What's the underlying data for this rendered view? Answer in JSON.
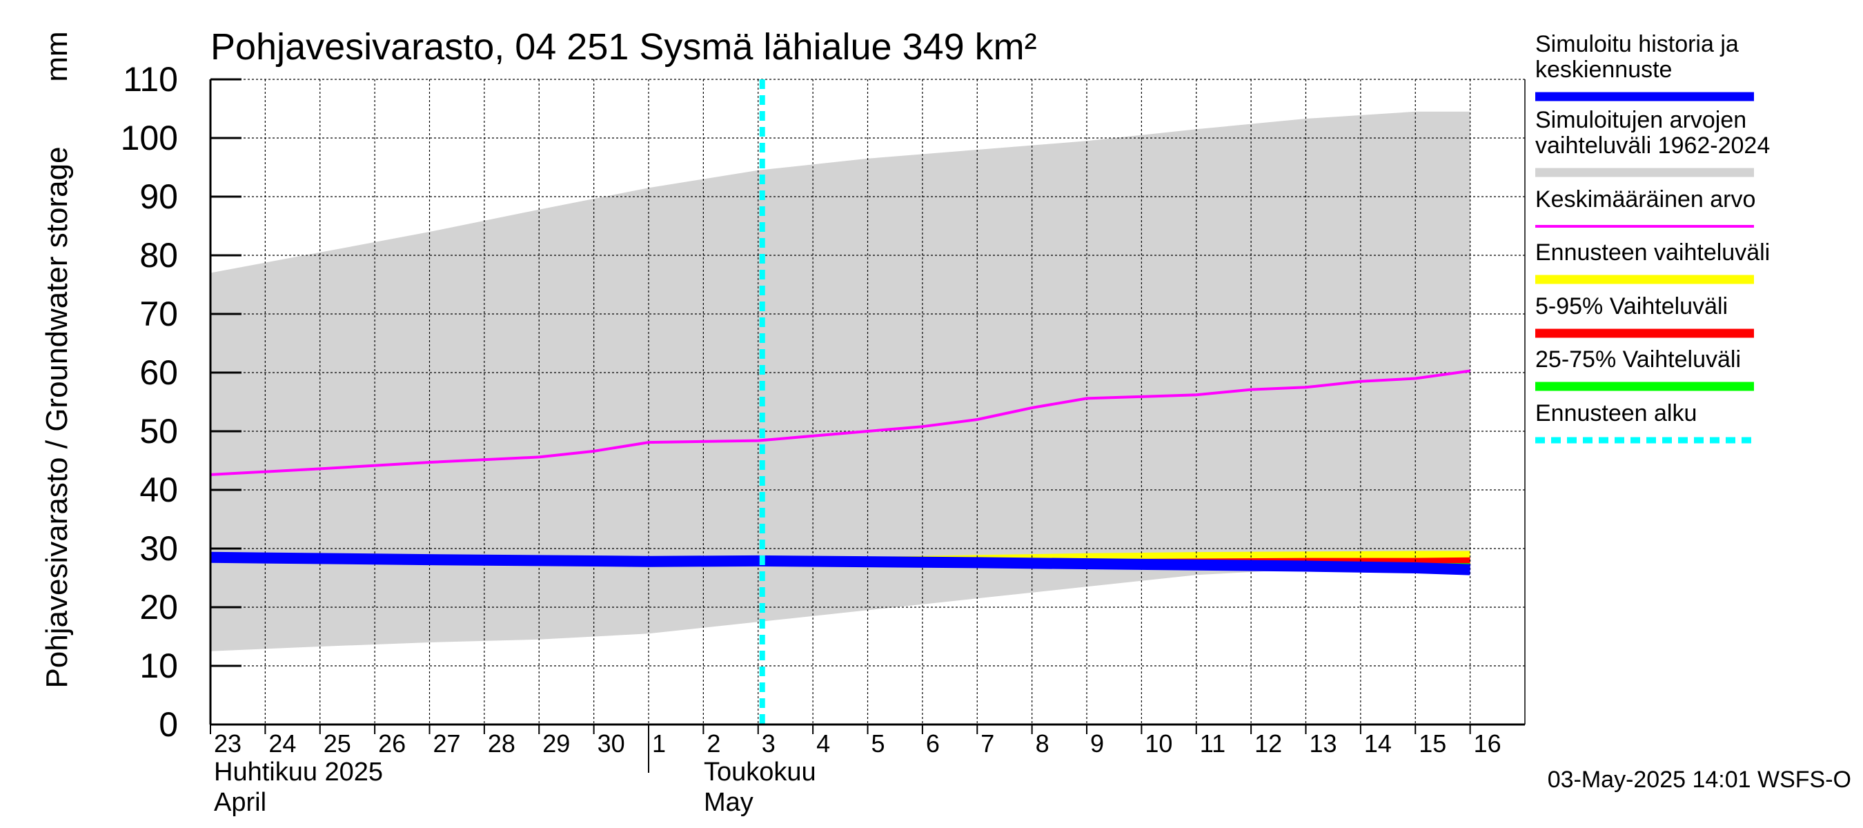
{
  "chart_data": {
    "type": "area",
    "title": "Pohjavesivarasto, 04 251 Sysmä lähialue 349 km²",
    "ylabel": "Pohjavesivarasto / Groundwater storage",
    "yunit": "mm",
    "ylim": [
      0,
      110
    ],
    "yticks": [
      0,
      10,
      20,
      30,
      40,
      50,
      60,
      70,
      80,
      90,
      100,
      110
    ],
    "grid": true,
    "x_start": "2025-04-23",
    "x_end": "2025-05-16",
    "x_tick_labels": [
      "23",
      "24",
      "25",
      "26",
      "27",
      "28",
      "29",
      "30",
      "1",
      "2",
      "3",
      "4",
      "5",
      "6",
      "7",
      "8",
      "9",
      "10",
      "11",
      "12",
      "13",
      "14",
      "15",
      "16"
    ],
    "month_labels": [
      {
        "fi": "Huhtikuu  2025",
        "en": "April"
      },
      {
        "fi": "Toukokuu",
        "en": "May"
      }
    ],
    "forecast_start": "2025-05-03",
    "footer": "03-May-2025 14:01 WSFS-O",
    "legend_position": "right",
    "legend": [
      {
        "label": "Simuloitu historia ja\nkeskiennuste",
        "color": "#0000ff",
        "style": "thick"
      },
      {
        "label": "Simuloitujen arvojen\nvaihteluväli 1962-2024",
        "color": "#d3d3d3",
        "style": "thick"
      },
      {
        "label": "Keskimääräinen arvo",
        "color": "#ff00ff",
        "style": "thin"
      },
      {
        "label": "Ennusteen vaihteluväli",
        "color": "#ffff00",
        "style": "thick"
      },
      {
        "label": "5-95% Vaihteluväli",
        "color": "#ff0000",
        "style": "thick"
      },
      {
        "label": "25-75% Vaihteluväli",
        "color": "#00ff00",
        "style": "thick"
      },
      {
        "label": "Ennusteen alku",
        "color": "#00ffff",
        "style": "dashed"
      }
    ],
    "series": [
      {
        "name": "Simuloitujen arvojen vaihteluväli 1962-2024",
        "kind": "band",
        "color": "#d3d3d3",
        "x": [
          "2025-04-23",
          "2025-04-25",
          "2025-04-27",
          "2025-04-29",
          "2025-05-01",
          "2025-05-03",
          "2025-05-05",
          "2025-05-07",
          "2025-05-09",
          "2025-05-11",
          "2025-05-13",
          "2025-05-15",
          "2025-05-16"
        ],
        "low": [
          12.5,
          13.3,
          14.0,
          14.5,
          15.5,
          17.5,
          19.5,
          21.5,
          23.5,
          25.5,
          26.5,
          27.5,
          28.0
        ],
        "high": [
          77.0,
          80.5,
          84.0,
          87.8,
          91.5,
          94.5,
          96.5,
          98.0,
          99.5,
          101.5,
          103.3,
          104.5,
          104.5
        ]
      },
      {
        "name": "Ennusteen vaihteluväli",
        "kind": "band",
        "color": "#ffff00",
        "x": [
          "2025-05-03",
          "2025-05-07",
          "2025-05-09",
          "2025-05-11",
          "2025-05-13",
          "2025-05-15",
          "2025-05-16"
        ],
        "low": [
          27.7,
          27.0,
          26.8,
          26.5,
          26.5,
          26.3,
          26.3
        ],
        "high": [
          28.3,
          28.9,
          29.2,
          29.4,
          29.5,
          29.6,
          29.6
        ]
      },
      {
        "name": "5-95% Vaihteluväli",
        "kind": "band",
        "color": "#ff0000",
        "x": [
          "2025-05-03",
          "2025-05-07",
          "2025-05-09",
          "2025-05-11",
          "2025-05-13",
          "2025-05-15",
          "2025-05-16"
        ],
        "low": [
          27.8,
          27.3,
          27.1,
          26.9,
          26.8,
          26.7,
          26.7
        ],
        "high": [
          28.1,
          28.2,
          28.2,
          28.3,
          28.4,
          28.4,
          28.5
        ]
      },
      {
        "name": "25-75% Vaihteluväli",
        "kind": "band",
        "color": "#00ff00",
        "x": [
          "2025-05-03",
          "2025-05-07",
          "2025-05-09",
          "2025-05-11",
          "2025-05-13",
          "2025-05-15",
          "2025-05-16"
        ],
        "low": [
          27.9,
          27.5,
          27.3,
          27.1,
          27.0,
          26.9,
          26.8
        ],
        "high": [
          28.0,
          27.9,
          27.8,
          27.7,
          27.6,
          27.5,
          27.5
        ]
      },
      {
        "name": "Keskimääräinen arvo",
        "kind": "line",
        "color": "#ff00ff",
        "x": [
          "2025-04-23",
          "2025-04-25",
          "2025-04-27",
          "2025-04-29",
          "2025-04-30",
          "2025-05-01",
          "2025-05-03",
          "2025-05-05",
          "2025-05-06",
          "2025-05-07",
          "2025-05-08",
          "2025-05-09",
          "2025-05-11",
          "2025-05-12",
          "2025-05-13",
          "2025-05-14",
          "2025-05-15",
          "2025-05-16"
        ],
        "values": [
          42.6,
          43.6,
          44.7,
          45.6,
          46.6,
          48.1,
          48.4,
          50.0,
          50.8,
          52.0,
          54.0,
          55.6,
          56.2,
          57.1,
          57.5,
          58.5,
          59.0,
          60.3
        ]
      },
      {
        "name": "Simuloitu historia ja keskiennuste",
        "kind": "line",
        "color": "#0000ff",
        "x": [
          "2025-04-23",
          "2025-04-27",
          "2025-05-01",
          "2025-05-03",
          "2025-05-07",
          "2025-05-11",
          "2025-05-13",
          "2025-05-15",
          "2025-05-16"
        ],
        "values": [
          28.5,
          28.1,
          27.8,
          27.9,
          27.6,
          27.2,
          27.0,
          26.7,
          26.4
        ]
      }
    ]
  }
}
